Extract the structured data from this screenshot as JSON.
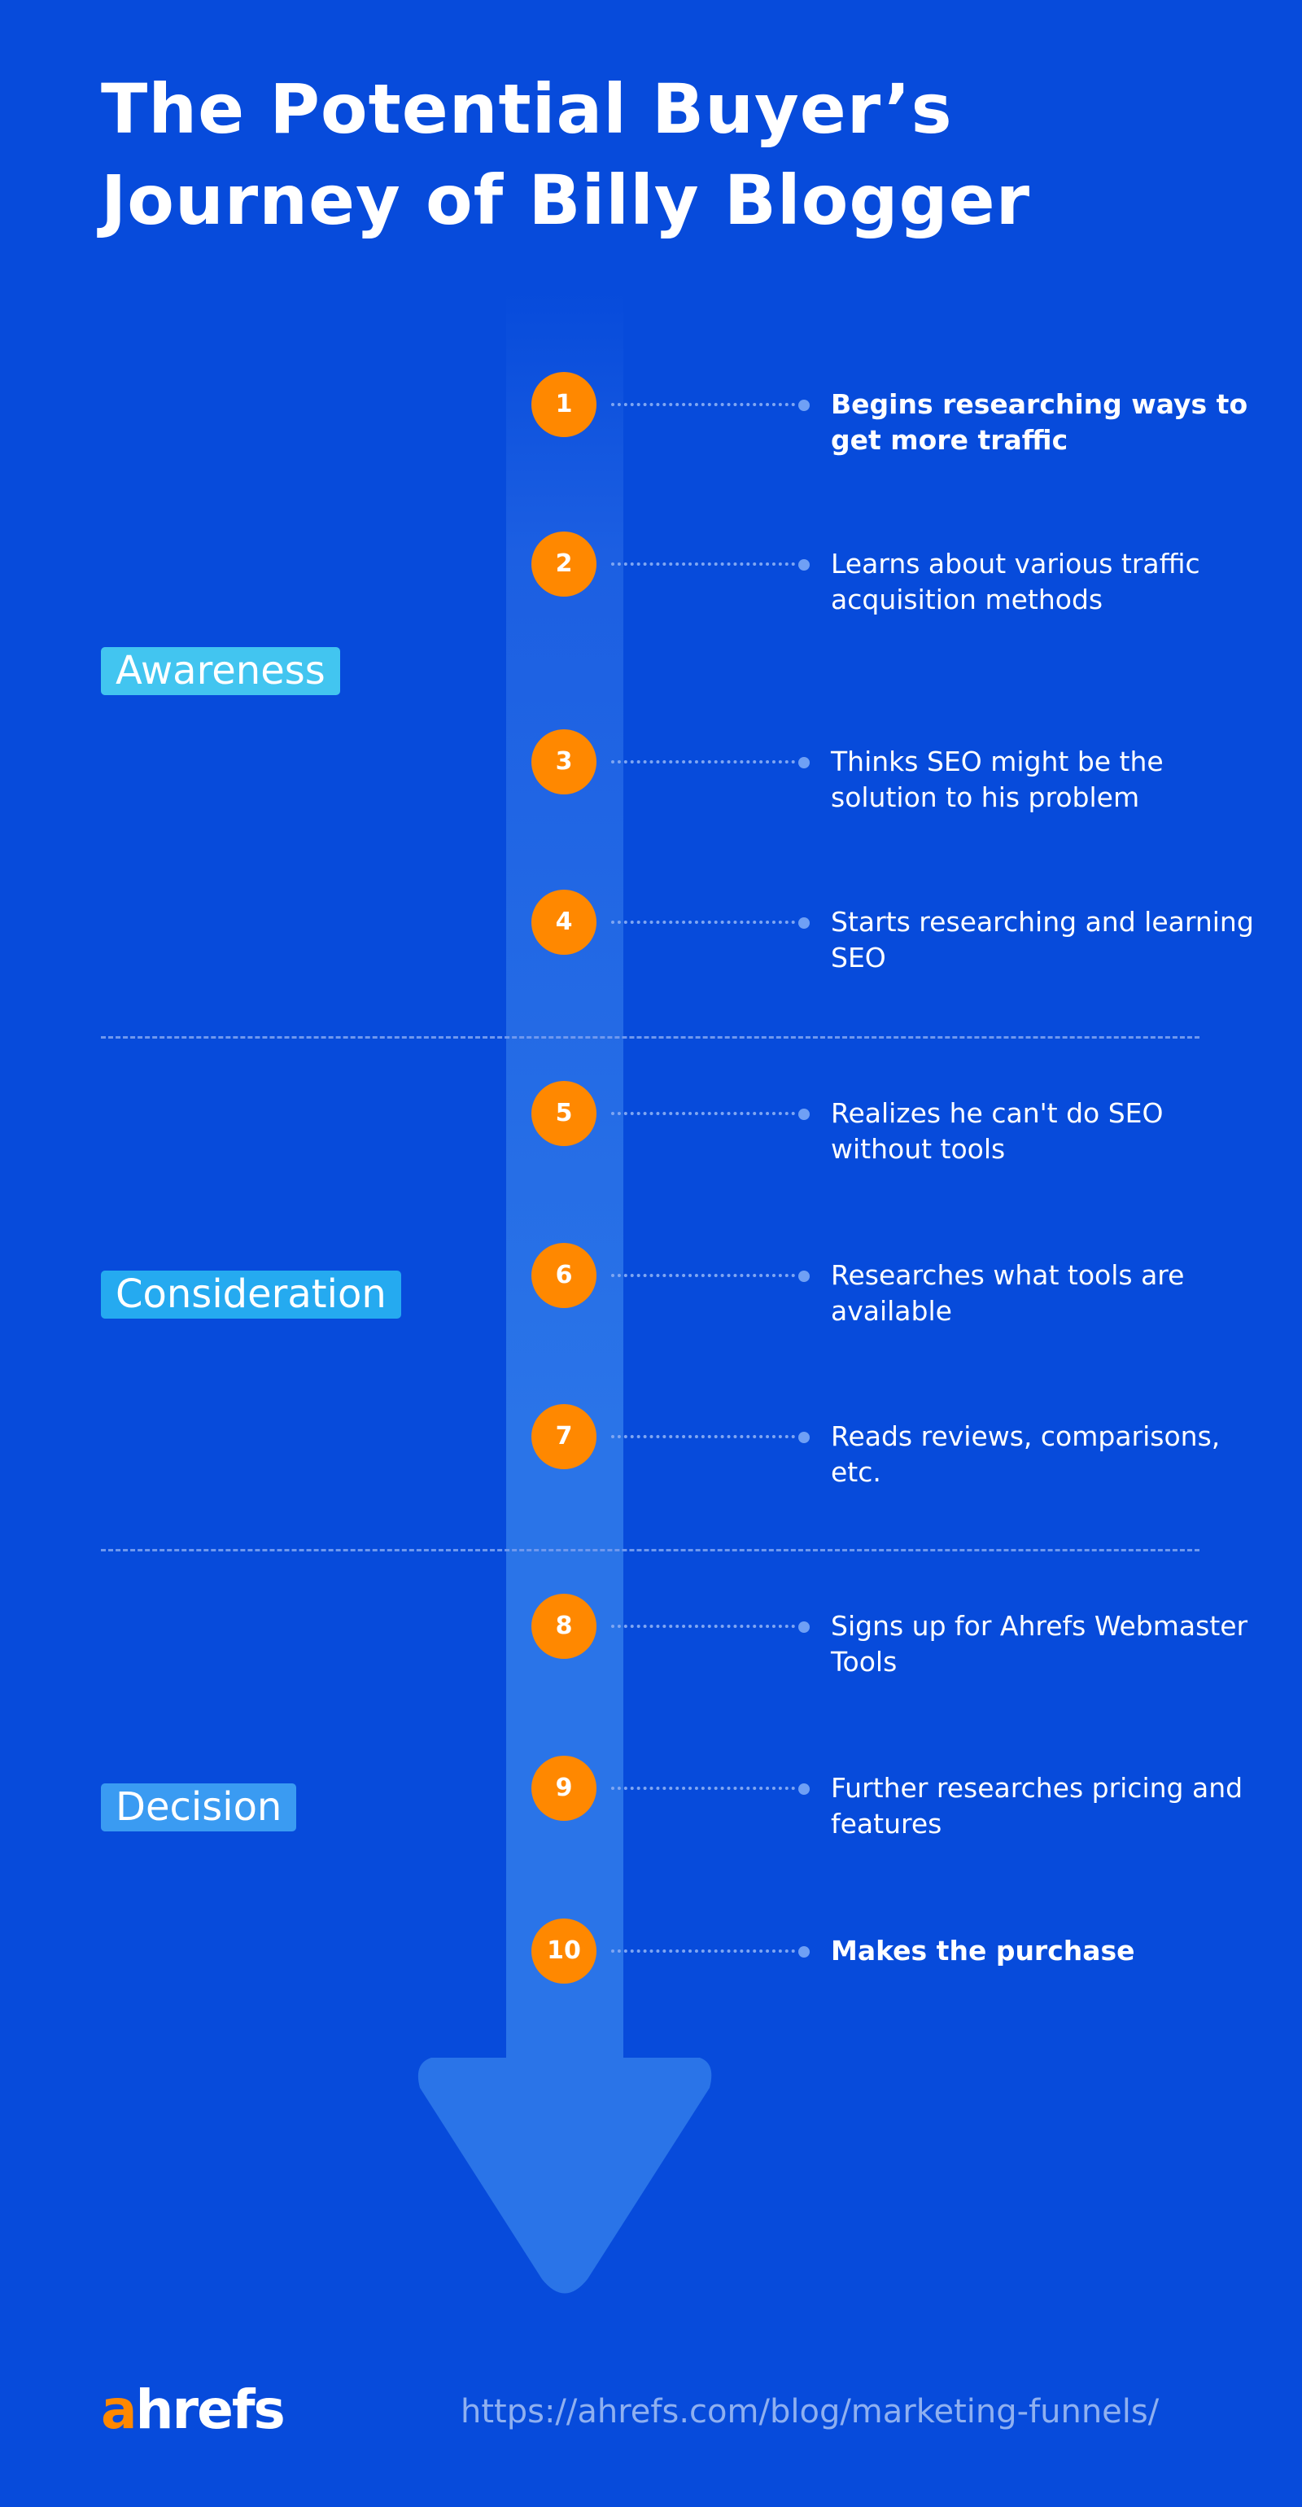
{
  "title": {
    "line1": "The Potential Buyer’s",
    "line2": "Journey of Billy Blogger"
  },
  "stages": [
    {
      "label": "Awareness",
      "color": "#42C5F0"
    },
    {
      "label": "Consideration",
      "color": "#25AAF0"
    },
    {
      "label": "Decision",
      "color": "#3A9BF2"
    }
  ],
  "steps": [
    {
      "number": "1",
      "text": "Begins researching ways to get more traffic",
      "bold": true
    },
    {
      "number": "2",
      "text": "Learns about various traffic acquisition methods",
      "bold": false
    },
    {
      "number": "3",
      "text": "Thinks SEO might be the solution to his problem",
      "bold": false
    },
    {
      "number": "4",
      "text": "Starts researching and learning SEO",
      "bold": false
    },
    {
      "number": "5",
      "text": "Realizes he can't do SEO without tools",
      "bold": false
    },
    {
      "number": "6",
      "text": "Researches what tools are available",
      "bold": false
    },
    {
      "number": "7",
      "text": "Reads reviews, comparisons, etc.",
      "bold": false
    },
    {
      "number": "8",
      "text": "Signs up for Ahrefs Webmaster Tools",
      "bold": false
    },
    {
      "number": "9",
      "text": "Further researches pricing and features",
      "bold": false
    },
    {
      "number": "10",
      "text": "Makes the purchase",
      "bold": true
    }
  ],
  "footer": {
    "logo_a": "a",
    "logo_rest": "hrefs",
    "url": "https://ahrefs.com/blog/marketing-funnels/"
  },
  "colors": {
    "background": "#074BDB",
    "arrow": "#2A74E8",
    "step_circle": "#FF8800"
  }
}
